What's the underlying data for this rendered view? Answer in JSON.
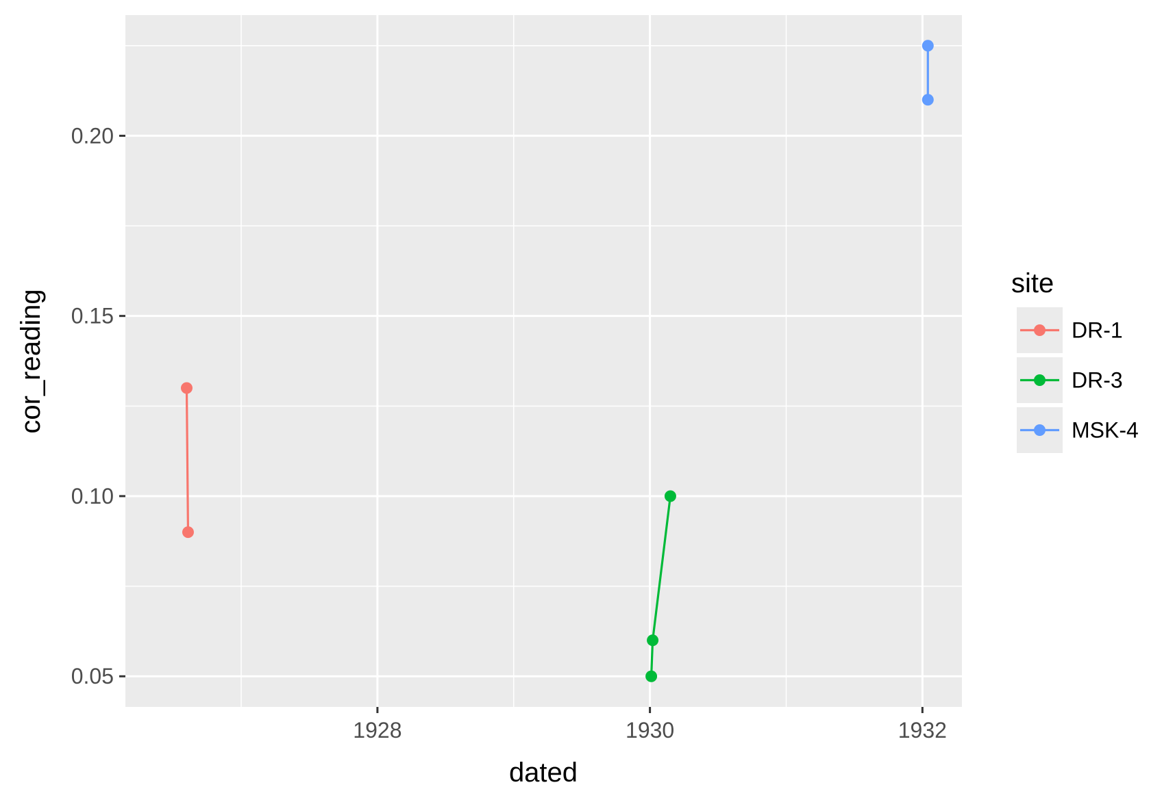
{
  "chart_data": {
    "type": "line",
    "xlabel": "dated",
    "ylabel": "cor_reading",
    "x_ticks": [
      "1928",
      "1930",
      "1932"
    ],
    "y_ticks": [
      "0.05",
      "0.10",
      "0.15",
      "0.20"
    ],
    "xlim": [
      1926.15,
      1932.29
    ],
    "ylim": [
      0.0415,
      0.2335
    ],
    "grid": true,
    "legend": {
      "title": "site",
      "position": "right"
    },
    "series": [
      {
        "name": "DR-1",
        "color": "#f8766d",
        "points": [
          {
            "x": 1926.6,
            "y": 0.13
          },
          {
            "x": 1926.61,
            "y": 0.09
          }
        ]
      },
      {
        "name": "DR-3",
        "color": "#00ba38",
        "points": [
          {
            "x": 1930.01,
            "y": 0.05
          },
          {
            "x": 1930.02,
            "y": 0.06
          },
          {
            "x": 1930.15,
            "y": 0.1
          }
        ]
      },
      {
        "name": "MSK-4",
        "color": "#619cff",
        "points": [
          {
            "x": 1932.04,
            "y": 0.225
          },
          {
            "x": 1932.04,
            "y": 0.21
          }
        ]
      }
    ]
  }
}
